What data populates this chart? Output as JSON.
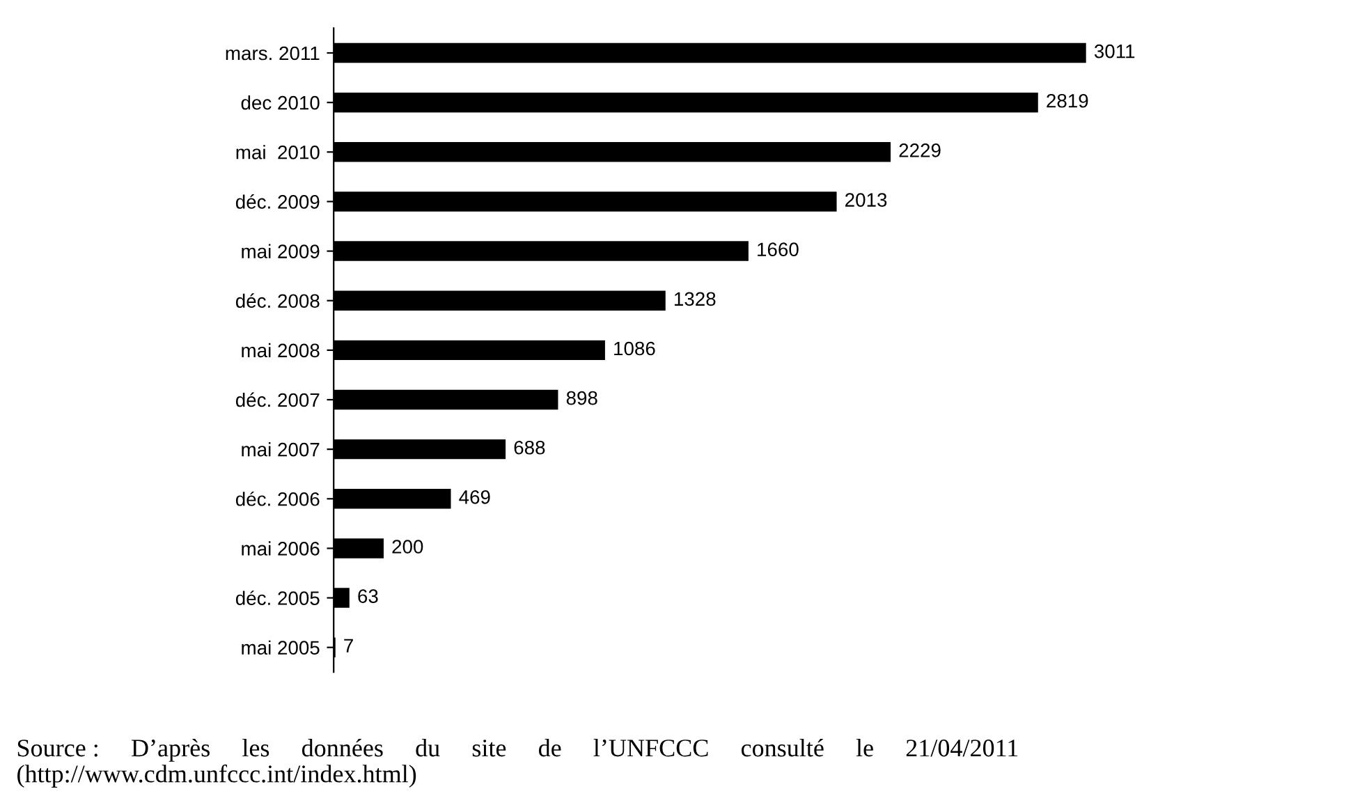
{
  "chart_data": {
    "type": "bar",
    "orientation": "horizontal",
    "categories": [
      "mars. 2011",
      "dec 2010",
      "mai  2010",
      "déc. 2009",
      "mai 2009",
      "déc. 2008",
      "mai 2008",
      "déc. 2007",
      "mai 2007",
      "déc. 2006",
      "mai 2006",
      "déc. 2005",
      "mai 2005"
    ],
    "values": [
      3011,
      2819,
      2229,
      2013,
      1660,
      1328,
      1086,
      898,
      688,
      469,
      200,
      63,
      7
    ],
    "color": "#000000",
    "data_labels": true,
    "grid": false,
    "legend": false,
    "annotations": [
      "Source :     D’après     les     données     du     site     de     l’UNFCCC     consulté     le     21/04/2011",
      "(http://www.cdm.unfccc.int/index.html)"
    ]
  }
}
